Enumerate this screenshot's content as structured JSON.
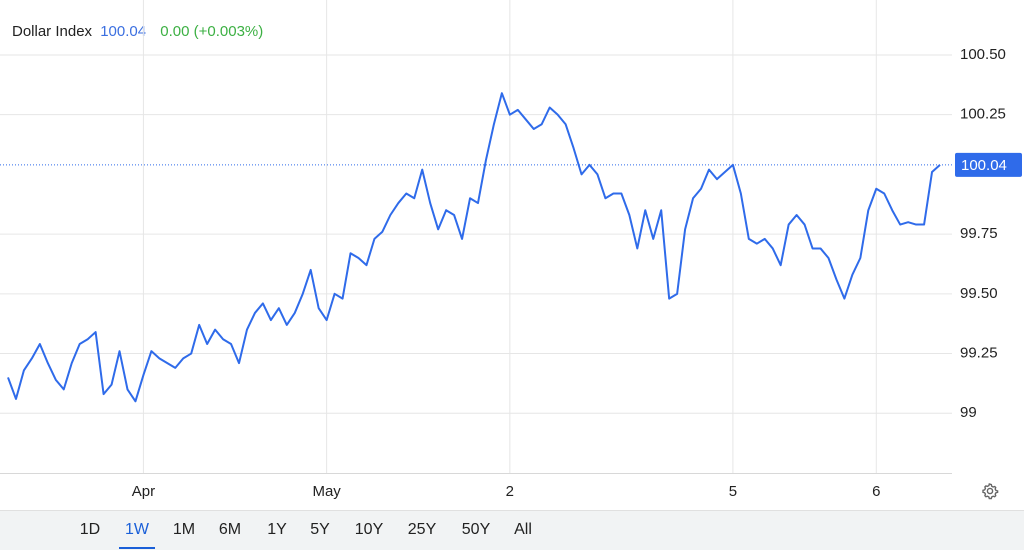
{
  "header": {
    "title": "Dollar Index",
    "price": "100.04",
    "change": "0.00 (+0.003%)"
  },
  "ranges": [
    "1D",
    "1W",
    "1M",
    "6M",
    "1Y",
    "5Y",
    "10Y",
    "25Y",
    "50Y",
    "All"
  ],
  "selected_range": "1W",
  "chart_data": {
    "type": "line",
    "color": "#2f6bea",
    "categories": [
      null,
      null,
      null,
      null,
      null,
      null,
      null,
      null,
      null,
      null,
      null,
      null,
      null,
      null,
      null,
      null,
      null,
      "Apr",
      null,
      null,
      null,
      null,
      null,
      null,
      null,
      null,
      null,
      null,
      null,
      null,
      null,
      null,
      null,
      null,
      null,
      null,
      null,
      null,
      null,
      null,
      "May",
      null,
      null,
      null,
      null,
      null,
      null,
      null,
      null,
      null,
      null,
      null,
      null,
      null,
      null,
      null,
      null,
      null,
      null,
      null,
      null,
      null,
      null,
      "2",
      null,
      null,
      null,
      null,
      null,
      null,
      null,
      null,
      null,
      null,
      null,
      null,
      null,
      null,
      null,
      null,
      null,
      null,
      null,
      null,
      null,
      null,
      null,
      null,
      null,
      null,
      null,
      "5",
      null,
      null,
      null,
      null,
      null,
      null,
      null,
      null,
      null,
      null,
      null,
      null,
      null,
      null,
      null,
      null,
      null,
      "6",
      null,
      null,
      null,
      null,
      null,
      null,
      null,
      null
    ],
    "values": [
      99.15,
      99.06,
      99.18,
      99.23,
      99.29,
      99.21,
      99.14,
      99.1,
      99.21,
      99.29,
      99.31,
      99.34,
      99.08,
      99.12,
      99.26,
      99.1,
      99.05,
      99.16,
      99.26,
      99.23,
      99.21,
      99.19,
      99.23,
      99.25,
      99.37,
      99.29,
      99.35,
      99.31,
      99.29,
      99.21,
      99.35,
      99.42,
      99.46,
      99.39,
      99.44,
      99.37,
      99.42,
      99.5,
      99.6,
      99.44,
      99.39,
      99.5,
      99.48,
      99.67,
      99.65,
      99.62,
      99.73,
      99.76,
      99.83,
      99.88,
      99.92,
      99.9,
      100.02,
      99.88,
      99.77,
      99.85,
      99.83,
      99.73,
      99.9,
      99.88,
      100.06,
      100.21,
      100.34,
      100.25,
      100.27,
      100.23,
      100.19,
      100.21,
      100.28,
      100.25,
      100.21,
      100.11,
      100.0,
      100.04,
      100.0,
      99.9,
      99.92,
      99.92,
      99.83,
      99.69,
      99.85,
      99.73,
      99.85,
      99.48,
      99.5,
      99.77,
      99.9,
      99.94,
      100.02,
      99.98,
      100.01,
      100.04,
      99.92,
      99.73,
      99.71,
      99.73,
      99.69,
      99.62,
      99.79,
      99.83,
      99.79,
      99.69,
      99.69,
      99.65,
      99.56,
      99.48,
      99.58,
      99.65,
      99.85,
      99.94,
      99.92,
      99.85,
      99.79,
      99.8,
      99.79,
      99.79,
      100.01,
      100.04
    ],
    "last_label": "100.04",
    "ylim": [
      98.75,
      100.73
    ],
    "yticks": [
      99,
      99.25,
      {
        "value": 99.5,
        "label": "99.50"
      },
      99.75,
      100.25,
      {
        "value": 100.5,
        "label": "100.50"
      }
    ],
    "grid": true
  }
}
